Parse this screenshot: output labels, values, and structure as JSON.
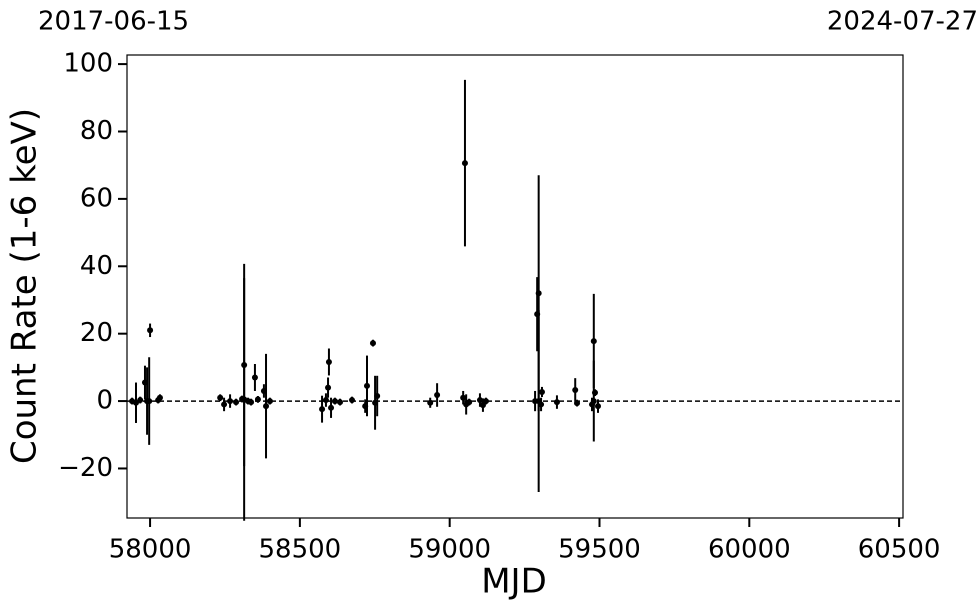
{
  "chart_data": {
    "type": "errorbar",
    "xlabel": "MJD",
    "ylabel": "Count Rate (1-6 keV)",
    "x2ticks": [
      {
        "value": 57919,
        "label": "2017-06-15"
      },
      {
        "value": 60518,
        "label": "2024-07-27"
      }
    ],
    "xlim": [
      57923,
      60513
    ],
    "ylim": [
      -34.7,
      102.7
    ],
    "xticks": [
      58000,
      58500,
      59000,
      59500,
      60000,
      60500
    ],
    "yticks": [
      {
        "value": -20,
        "label": "−20"
      },
      0,
      20,
      40,
      60,
      80,
      100
    ],
    "hline": 0,
    "series": [
      {
        "color": "#000000",
        "x": [
          57940,
          57953,
          57967,
          57983,
          57990,
          57997,
          58000,
          58027,
          58033,
          58234,
          58247,
          58267,
          58287,
          58307,
          58314,
          58314,
          58327,
          58337,
          58350,
          58360,
          58380,
          58387,
          58400,
          58574,
          58587,
          58594,
          58597,
          58604,
          58617,
          58634,
          58674,
          58718,
          58724,
          58744,
          58751,
          58758,
          58935,
          58958,
          59045,
          59051,
          59055,
          59065,
          59101,
          59111,
          59121,
          59285,
          59292,
          59297,
          59297,
          59305,
          59308,
          59358,
          59419,
          59425,
          59475,
          59481,
          59481,
          59485,
          59495
        ],
        "values": [
          0,
          -0.5,
          0.3,
          5.5,
          0,
          0,
          21,
          0.3,
          1,
          1,
          -1,
          0,
          -0.3,
          0.6,
          10.7,
          0.5,
          0,
          -0.3,
          7,
          0.5,
          3,
          -1.5,
          0,
          -2.4,
          0.3,
          4,
          11.6,
          -2,
          0,
          -0.3,
          0.3,
          -1.5,
          4.5,
          17.2,
          -0.5,
          1.5,
          -0.5,
          1.8,
          1,
          70.6,
          -1,
          -0.3,
          0.3,
          -1.2,
          0,
          0,
          25.8,
          32,
          0,
          -1,
          2.7,
          -0.3,
          3.3,
          -0.6,
          -1,
          17.8,
          0,
          2.5,
          -1.5
        ],
        "yerr": [
          1,
          6,
          1,
          5,
          10,
          13,
          2,
          1,
          1,
          1,
          2,
          2,
          1,
          1,
          30,
          36,
          1,
          1,
          4,
          1,
          2,
          15.5,
          1,
          4,
          2,
          3,
          4,
          3,
          1,
          1,
          1,
          2,
          9,
          1,
          8,
          6,
          1.5,
          3.5,
          2,
          24.7,
          3,
          1,
          2,
          2,
          1,
          3,
          11,
          35,
          27,
          2,
          1.5,
          2,
          3.5,
          1,
          2,
          14,
          12,
          1,
          2
        ]
      }
    ]
  }
}
